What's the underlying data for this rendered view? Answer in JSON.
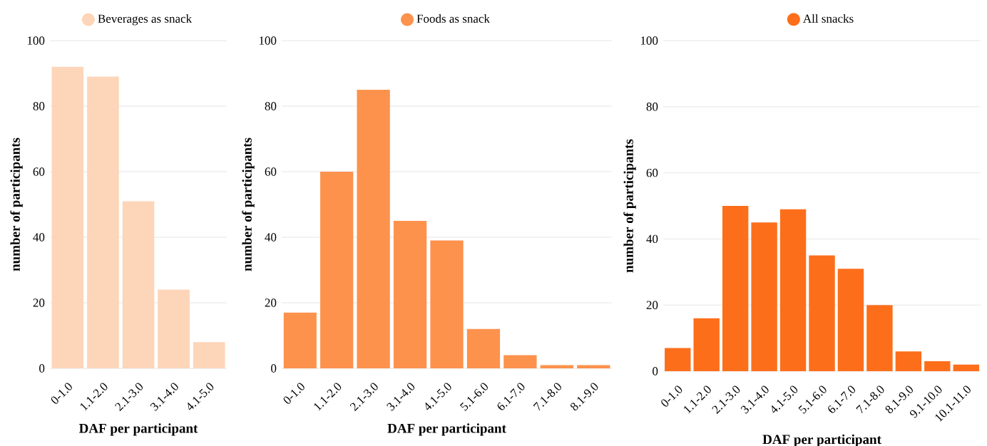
{
  "chart_data": [
    {
      "type": "bar",
      "xlabel": "DAF per participant",
      "ylabel": "number of participants",
      "categories": [
        "0-1.0",
        "1.1-2.0",
        "2.1-3.0",
        "3.1-4.0",
        "4.1-5.0"
      ],
      "series": [
        {
          "name": "Beverages as snack",
          "color": "#fdd5b9",
          "values": [
            92,
            89,
            51,
            24,
            8
          ]
        }
      ],
      "ylim": [
        0,
        100
      ],
      "yticks": [
        0,
        20,
        40,
        60,
        80,
        100
      ],
      "grid": "y",
      "legend": "top"
    },
    {
      "type": "bar",
      "xlabel": "DAF per participant",
      "ylabel": "number of participants",
      "categories": [
        "0-1.0",
        "1.1-2.0",
        "2.1-3.0",
        "3.1-4.0",
        "4.1-5.0",
        "5.1-6.0",
        "6.1-7.0",
        "7.1-8.0",
        "8.1-9.0"
      ],
      "series": [
        {
          "name": "Foods as snack",
          "color": "#fd924d",
          "values": [
            17,
            60,
            85,
            45,
            39,
            12,
            4,
            1,
            1
          ]
        }
      ],
      "ylim": [
        0,
        100
      ],
      "yticks": [
        0,
        20,
        40,
        60,
        80,
        100
      ],
      "grid": "y",
      "legend": "top"
    },
    {
      "type": "bar",
      "xlabel": "DAF per participant",
      "ylabel": "number of participants",
      "categories": [
        "0-1.0",
        "1.1-2.0",
        "2.1-3.0",
        "3.1-4.0",
        "4.1-5.0",
        "5.1-6.0",
        "6.1-7.0",
        "7.1-8.0",
        "8.1-9.0",
        "9.1-10.0",
        "10.1-11.0"
      ],
      "series": [
        {
          "name": "All snacks",
          "color": "#fd6e1b",
          "values": [
            7,
            16,
            50,
            45,
            49,
            35,
            31,
            20,
            6,
            3,
            2
          ]
        }
      ],
      "ylim": [
        0,
        100
      ],
      "yticks": [
        0,
        20,
        40,
        60,
        80,
        100
      ],
      "grid": "y",
      "legend": "top"
    }
  ]
}
